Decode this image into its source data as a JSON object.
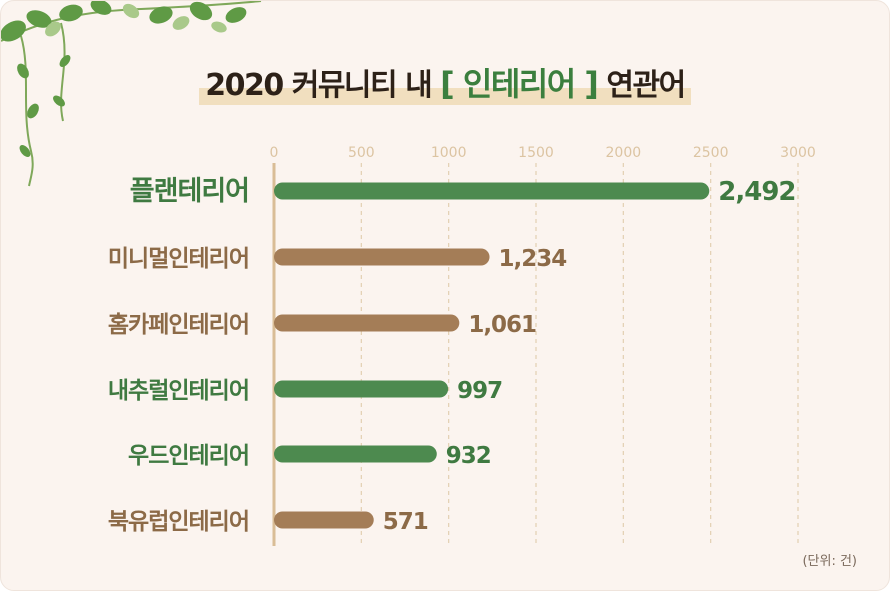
{
  "title": {
    "prefix": "2020 커뮤니티 내 ",
    "keyword": "[ 인테리어 ]",
    "suffix": " 연관어"
  },
  "unit_note": "(단위: 건)",
  "colors": {
    "green": "#4d8a4f",
    "brown": "#a47d57",
    "green_label": "#3f7a41",
    "brown_label": "#8c6a47",
    "axis": "#d9bd96",
    "grid": "#e3cfb2"
  },
  "chart_data": {
    "type": "bar",
    "orientation": "horizontal",
    "title": "2020 커뮤니티 내 [ 인테리어 ] 연관어",
    "xlabel": "",
    "ylabel": "",
    "xlim": [
      0,
      3000
    ],
    "x_ticks": [
      "0",
      "500",
      "1000",
      "1500",
      "2000",
      "2500",
      "3000"
    ],
    "x_tick_values": [
      0,
      500,
      1000,
      1500,
      2000,
      2500,
      3000
    ],
    "grid": true,
    "categories": [
      "플랜테리어",
      "미니멀인테리어",
      "홈카페인테리어",
      "내추럴인테리어",
      "우드인테리어",
      "북유럽인테리어"
    ],
    "values": [
      2492,
      1234,
      1061,
      997,
      932,
      571
    ],
    "value_labels": [
      "2,492",
      "1,234",
      "1,061",
      "997",
      "932",
      "571"
    ],
    "bar_colors": [
      "green",
      "brown",
      "brown",
      "green",
      "green",
      "brown"
    ]
  }
}
